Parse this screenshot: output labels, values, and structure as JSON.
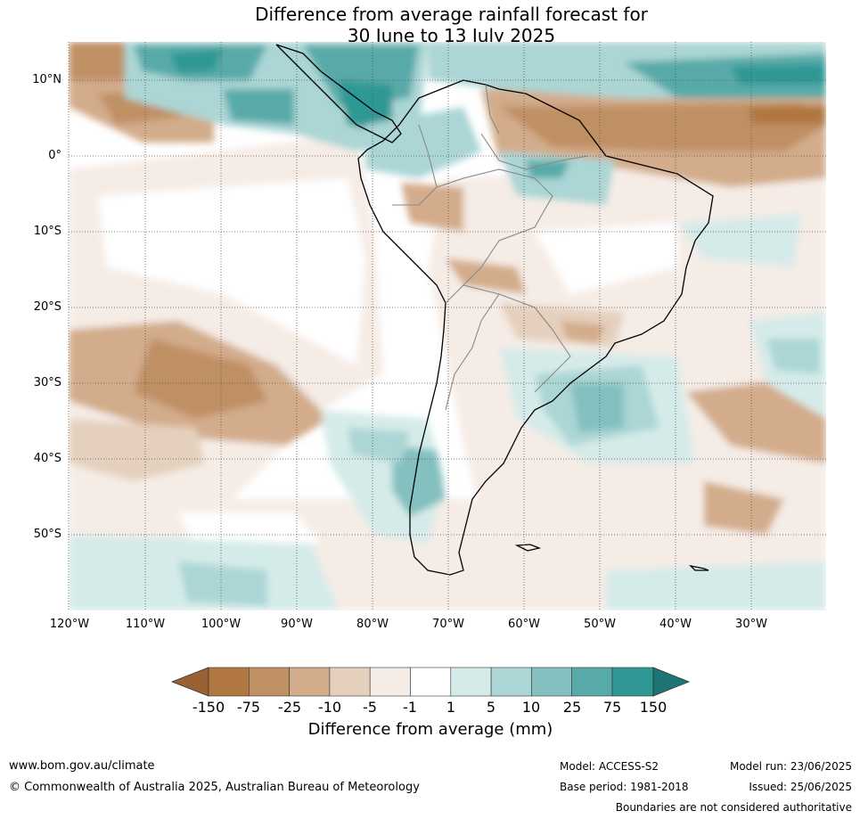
{
  "title": {
    "line1": "Difference from average rainfall forecast for",
    "line2": "30 June to 13 July 2025"
  },
  "map": {
    "lat_ticks": [
      "10°N",
      "0°",
      "10°S",
      "20°S",
      "30°S",
      "40°S",
      "50°S"
    ],
    "lon_ticks": [
      "120°W",
      "110°W",
      "100°W",
      "90°W",
      "80°W",
      "70°W",
      "60°W",
      "50°W",
      "40°W",
      "30°W"
    ],
    "extent": {
      "lon_min": -120,
      "lon_max": -20,
      "lat_min": -60,
      "lat_max": 15
    },
    "gridlines": "dotted",
    "region": "South America"
  },
  "colorbar": {
    "title": "Difference from average (mm)",
    "labels": [
      "-150",
      "-75",
      "-25",
      "-10",
      "-5",
      "-1",
      "1",
      "5",
      "10",
      "25",
      "75",
      "150"
    ],
    "colors": [
      "#9a6133",
      "#b07840",
      "#c09065",
      "#d3ac8b",
      "#e5d0bd",
      "#f5ece6",
      "#ffffff",
      "#d5ebe9",
      "#abd6d5",
      "#83c0bf",
      "#58aaa9",
      "#2f9894",
      "#1f7574"
    ],
    "extend": "both"
  },
  "footer": {
    "website": "www.bom.gov.au/climate",
    "copyright": "© Commonwealth of Australia 2025, Australian Bureau of Meteorology",
    "model": "Model: ACCESS-S2",
    "base_period": "Base period: 1981-2018",
    "model_run": "Model run: 23/06/2025",
    "issued": "Issued: 25/06/2025",
    "boundaries_note": "Boundaries are not considered authoritative"
  }
}
